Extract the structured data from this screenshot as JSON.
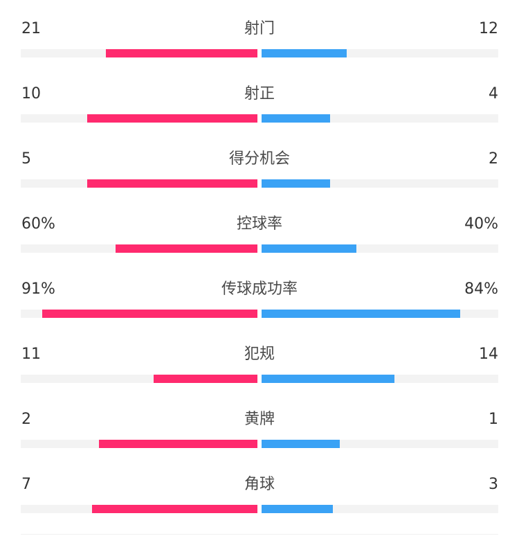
{
  "colors": {
    "home": "#ff2a6e",
    "away": "#3aa2f5",
    "track": "#f3f3f3"
  },
  "stats": [
    {
      "label": "射门",
      "home": "21",
      "away": "12",
      "home_ratio": 0.64,
      "away_ratio": 0.36
    },
    {
      "label": "射正",
      "home": "10",
      "away": "4",
      "home_ratio": 0.72,
      "away_ratio": 0.29
    },
    {
      "label": "得分机会",
      "home": "5",
      "away": "2",
      "home_ratio": 0.72,
      "away_ratio": 0.29
    },
    {
      "label": "控球率",
      "home": "60%",
      "away": "40%",
      "home_ratio": 0.6,
      "away_ratio": 0.4
    },
    {
      "label": "传球成功率",
      "home": "91%",
      "away": "84%",
      "home_ratio": 0.91,
      "away_ratio": 0.84
    },
    {
      "label": "犯规",
      "home": "11",
      "away": "14",
      "home_ratio": 0.44,
      "away_ratio": 0.56
    },
    {
      "label": "黄牌",
      "home": "2",
      "away": "1",
      "home_ratio": 0.67,
      "away_ratio": 0.33
    },
    {
      "label": "角球",
      "home": "7",
      "away": "3",
      "home_ratio": 0.7,
      "away_ratio": 0.3
    }
  ]
}
